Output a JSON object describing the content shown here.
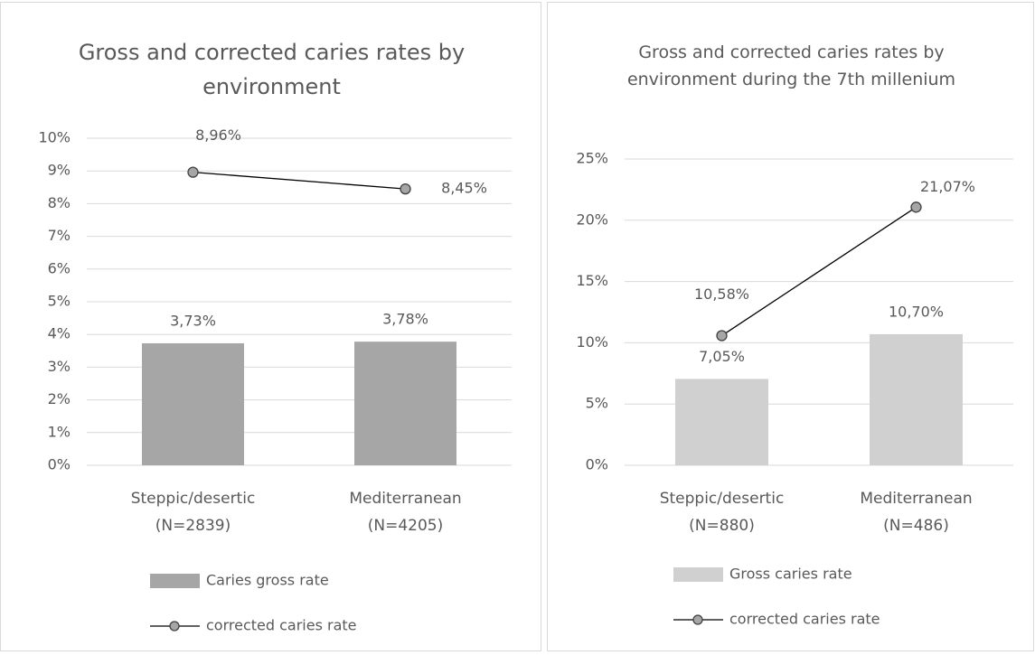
{
  "chart_data": [
    {
      "type": "bar",
      "title": "Gross and corrected caries rates by environment",
      "categories": [
        "Steppic/desertic (N=2839)",
        "Mediterranean (N=4205)"
      ],
      "series": [
        {
          "name": "Caries gross rate",
          "type": "bar",
          "color": "#a6a6a6",
          "values": [
            3.73,
            3.78
          ],
          "value_labels": [
            "3,73%",
            "3,78%"
          ]
        },
        {
          "name": "corrected caries rate",
          "type": "line",
          "color": "#000000",
          "marker_color": "#a6a6a6",
          "values": [
            8.96,
            8.45
          ],
          "value_labels": [
            "8,96%",
            "8,45%"
          ]
        }
      ],
      "ylim": [
        0,
        10
      ],
      "yticks": [
        {
          "value": 0,
          "label": "0%"
        },
        {
          "value": 1,
          "label": "1%"
        },
        {
          "value": 2,
          "label": "2%"
        },
        {
          "value": 3,
          "label": "3%"
        },
        {
          "value": 4,
          "label": "4%"
        },
        {
          "value": 5,
          "label": "5%"
        },
        {
          "value": 6,
          "label": "6%"
        },
        {
          "value": 7,
          "label": "7%"
        },
        {
          "value": 8,
          "label": "8%"
        },
        {
          "value": 9,
          "label": "9%"
        },
        {
          "value": 10,
          "label": "10%"
        }
      ],
      "grid": true,
      "legend": "bottom"
    },
    {
      "type": "bar",
      "title": "Gross and corrected caries rates by environment during the 7th millenium",
      "categories": [
        "Steppic/desertic (N=880)",
        "Mediterranean (N=486)"
      ],
      "series": [
        {
          "name": "Gross caries rate",
          "type": "bar",
          "color": "#d0d0d0",
          "values": [
            7.05,
            10.7
          ],
          "value_labels": [
            "7,05%",
            "10,70%"
          ]
        },
        {
          "name": "corrected caries rate",
          "type": "line",
          "color": "#000000",
          "marker_color": "#a6a6a6",
          "values": [
            10.58,
            21.07
          ],
          "value_labels": [
            "10,58%",
            "21,07%"
          ]
        }
      ],
      "ylim": [
        0,
        25
      ],
      "yticks": [
        {
          "value": 0,
          "label": "0%"
        },
        {
          "value": 5,
          "label": "5%"
        },
        {
          "value": 10,
          "label": "10%"
        },
        {
          "value": 15,
          "label": "15%"
        },
        {
          "value": 20,
          "label": "20%"
        },
        {
          "value": 25,
          "label": "25%"
        }
      ],
      "grid": true,
      "legend": "bottom"
    }
  ]
}
